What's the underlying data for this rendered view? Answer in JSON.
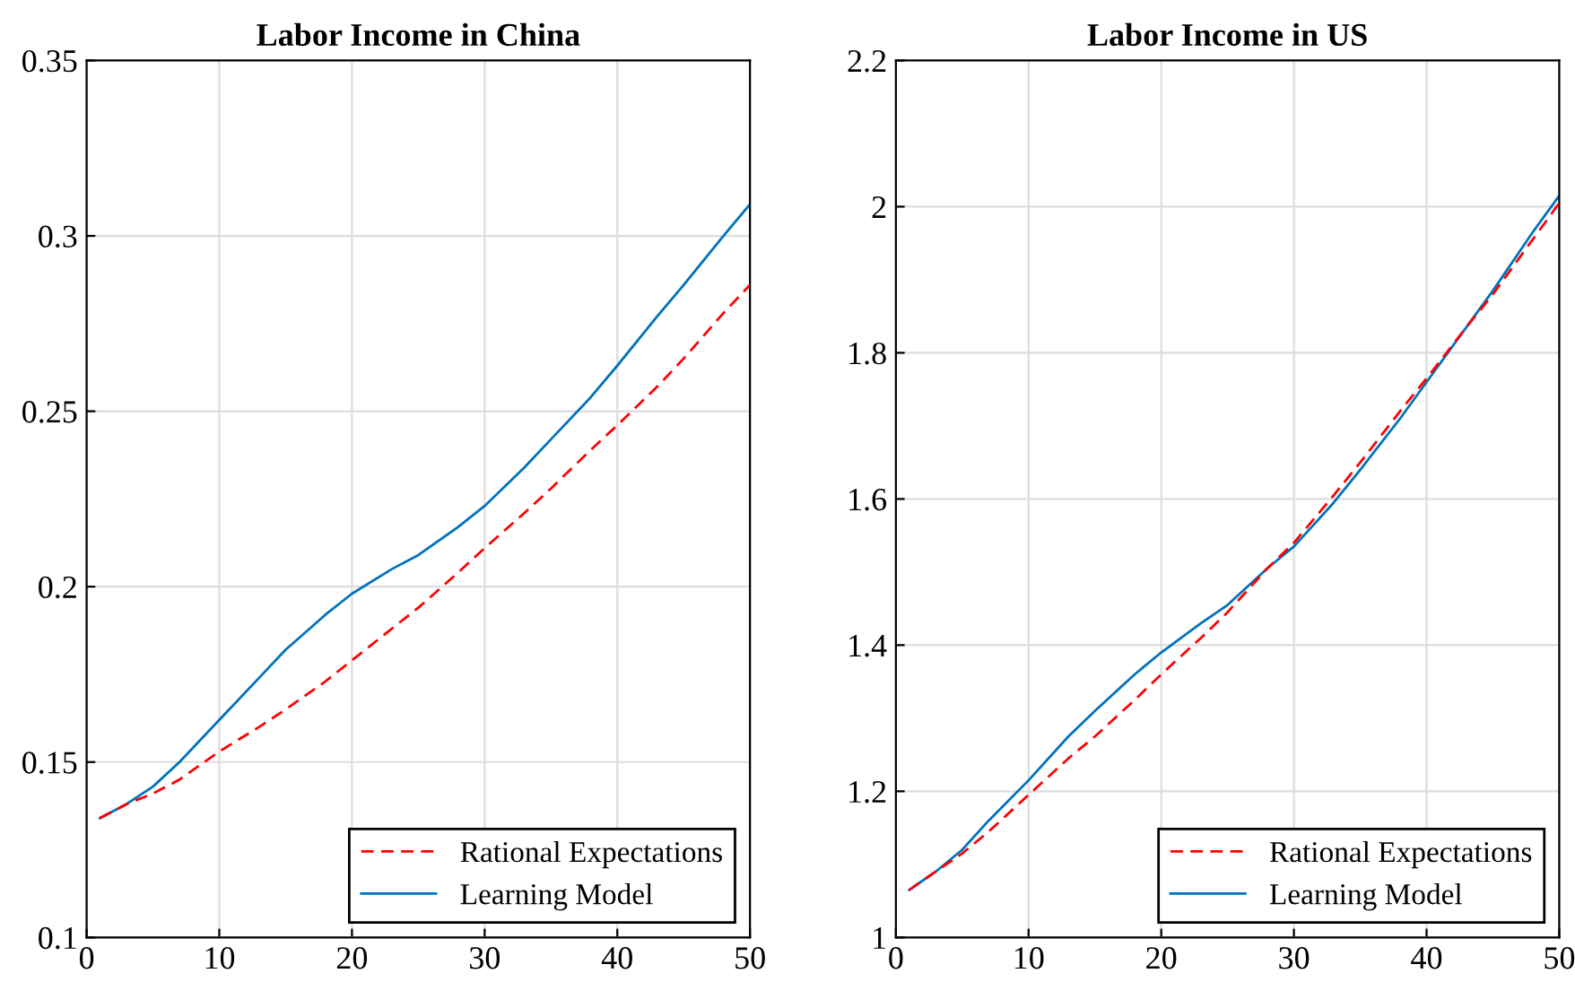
{
  "chart_data": [
    {
      "type": "line",
      "title": "Labor Income in China",
      "x": [
        1,
        3,
        5,
        7,
        10,
        13,
        15,
        18,
        20,
        23,
        25,
        28,
        30,
        33,
        35,
        38,
        40,
        43,
        45,
        48,
        50
      ],
      "xlim": [
        0,
        50
      ],
      "xticks": [
        0,
        10,
        20,
        30,
        40,
        50
      ],
      "ylim": [
        0.1,
        0.35
      ],
      "yticks": [
        0.1,
        0.15,
        0.2,
        0.25,
        0.3,
        0.35
      ],
      "grid": true,
      "legend": "bottom right",
      "series": [
        {
          "name": "Rational Expectations",
          "color": "#ff0000",
          "line_style": "dashed",
          "values": [
            0.134,
            0.138,
            0.141,
            0.145,
            0.153,
            0.16,
            0.165,
            0.173,
            0.179,
            0.188,
            0.194,
            0.204,
            0.211,
            0.221,
            0.228,
            0.239,
            0.246,
            0.257,
            0.265,
            0.278,
            0.286
          ]
        },
        {
          "name": "Learning Model",
          "color": "#0072bd",
          "line_style": "solid",
          "values": [
            0.134,
            0.138,
            0.143,
            0.15,
            0.162,
            0.174,
            0.182,
            0.192,
            0.198,
            0.205,
            0.209,
            0.217,
            0.223,
            0.234,
            0.242,
            0.254,
            0.263,
            0.277,
            0.286,
            0.3,
            0.309
          ]
        }
      ]
    },
    {
      "type": "line",
      "title": "Labor Income in US",
      "x": [
        1,
        3,
        5,
        7,
        10,
        13,
        15,
        18,
        20,
        23,
        25,
        28,
        30,
        33,
        35,
        38,
        40,
        43,
        45,
        48,
        50
      ],
      "xlim": [
        0,
        50
      ],
      "xticks": [
        0,
        10,
        20,
        30,
        40,
        50
      ],
      "ylim": [
        1,
        2.2
      ],
      "yticks": [
        1,
        1.2,
        1.4,
        1.6,
        1.8,
        2,
        2.2
      ],
      "grid": true,
      "legend": "bottom right",
      "series": [
        {
          "name": "Rational Expectations",
          "color": "#ff0000",
          "line_style": "dashed",
          "values": [
            1.065,
            1.09,
            1.115,
            1.145,
            1.195,
            1.245,
            1.275,
            1.325,
            1.36,
            1.41,
            1.445,
            1.505,
            1.54,
            1.605,
            1.65,
            1.72,
            1.765,
            1.835,
            1.88,
            1.955,
            2.005
          ]
        },
        {
          "name": "Learning Model",
          "color": "#0072bd",
          "line_style": "solid",
          "values": [
            1.065,
            1.09,
            1.12,
            1.16,
            1.215,
            1.275,
            1.31,
            1.36,
            1.39,
            1.43,
            1.455,
            1.505,
            1.535,
            1.595,
            1.64,
            1.71,
            1.76,
            1.835,
            1.885,
            1.965,
            2.015
          ]
        }
      ]
    }
  ]
}
